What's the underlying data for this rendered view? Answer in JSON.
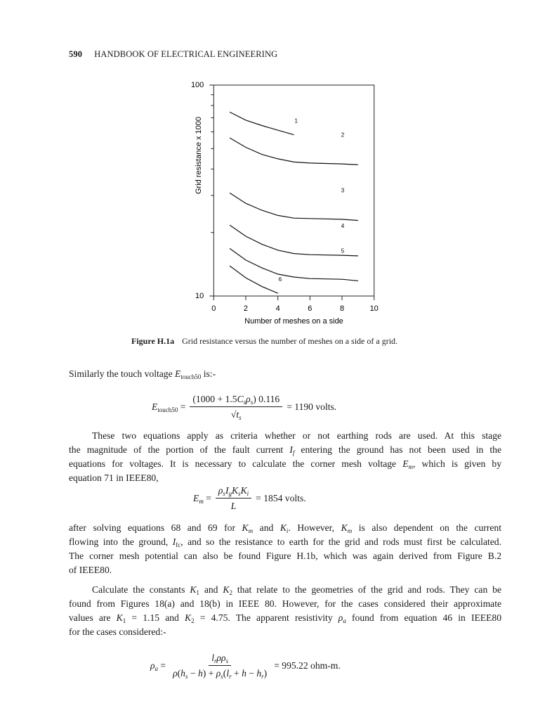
{
  "header": {
    "page_number": "590",
    "running_title": "HANDBOOK OF ELECTRICAL ENGINEERING"
  },
  "chart_data": {
    "type": "line",
    "xlabel": "Number of meshes on a side",
    "ylabel": "Grid resistance x 1000",
    "xlim": [
      0,
      10
    ],
    "ylim": [
      10,
      100
    ],
    "y_scale": "log",
    "x_ticks": [
      "0",
      "2",
      "4",
      "6",
      "8",
      "10"
    ],
    "y_tick_labels": [
      "10",
      "100"
    ],
    "grid": false,
    "series": [
      {
        "name": "1",
        "x": [
          1,
          2,
          3,
          4,
          5
        ],
        "y": [
          74.5,
          68.2,
          64.3,
          61.1,
          58.1
        ]
      },
      {
        "name": "2",
        "x": [
          1,
          2,
          3,
          4,
          5,
          6,
          8,
          9
        ],
        "y": [
          56.2,
          50.7,
          46.9,
          44.7,
          43.2,
          42.7,
          42.3,
          41.9
        ]
      },
      {
        "name": "3",
        "x": [
          1,
          2,
          3,
          4,
          5,
          6,
          8,
          9
        ],
        "y": [
          30.8,
          27.5,
          25.5,
          24.1,
          23.4,
          23.3,
          23.1,
          22.8
        ]
      },
      {
        "name": "4",
        "x": [
          1,
          2,
          3,
          4,
          5,
          6,
          8,
          9
        ],
        "y": [
          21.7,
          19.2,
          17.6,
          16.5,
          15.9,
          15.7,
          15.6,
          15.5
        ]
      },
      {
        "name": "5",
        "x": [
          1,
          2,
          3,
          4,
          5,
          6,
          8,
          9
        ],
        "y": [
          16.8,
          14.8,
          13.6,
          12.7,
          12.3,
          12.1,
          12.0,
          11.8
        ]
      },
      {
        "name": "6",
        "x": [
          1,
          2,
          3,
          4
        ],
        "y": [
          13.9,
          12.2,
          11.1,
          10.3
        ]
      }
    ]
  },
  "caption": {
    "label": "Figure H.1a",
    "text": "Grid resistance versus the number of meshes on a side of a grid."
  },
  "body": {
    "p1": [
      [
        "Similarly the touch voltage ",
        {
          "v": "E",
          "sub": "touch50"
        },
        " is:-"
      ]
    ],
    "p2": [
      [
        "These two equations apply as criteria whether or not earthing rods are used. At this stage"
      ],
      [
        "the magnitude of the portion of the fault current ",
        {
          "v": "I",
          "subi": "f"
        },
        " entering the ground has not been used in the"
      ],
      [
        "equations for voltages. It is necessary to calculate the corner mesh voltage ",
        {
          "v": "E",
          "subi": "m"
        },
        ", which is given by"
      ],
      [
        "equation 71 in IEEE80,"
      ]
    ],
    "p3": [
      [
        "after solving equations 68 and 69 for ",
        {
          "v": "K",
          "subi": "m"
        },
        " and ",
        {
          "v": "K",
          "subi": "i"
        },
        ". However, ",
        {
          "v": "K",
          "subi": "m"
        },
        " is also dependent on the current"
      ],
      [
        "flowing into the ground, ",
        {
          "v": "I",
          "sub": "fc"
        },
        ", and so the resistance to earth for the grid and rods must first be calculated."
      ],
      [
        "The corner mesh potential can also be found Figure H.1b, which was again derived from Figure B.2"
      ],
      [
        "of IEEE80."
      ]
    ],
    "p4": [
      [
        "Calculate the constants ",
        {
          "v": "K",
          "sub": "1"
        },
        " and ",
        {
          "v": "K",
          "sub": "2"
        },
        " that relate to the geometries of the grid and rods. They can be"
      ],
      [
        "found from Figures 18(a) and 18(b) in IEEE 80. However, for the cases considered their approximate"
      ],
      [
        "values are ",
        {
          "v": "K",
          "sub": "1"
        },
        " = 1.15 and ",
        {
          "v": "K",
          "sub": "2"
        },
        " = 4.75. The apparent resistivity ",
        {
          "v": "ρ",
          "subi": "a"
        },
        " found from equation 46 in IEEE80"
      ],
      [
        "for the cases considered:-"
      ]
    ]
  },
  "equations": {
    "touch": {
      "lhs": [
        {
          "v": "E",
          "sub": "touch50"
        },
        " ="
      ],
      "num": [
        "(1000 + 1.5",
        {
          "v": "C",
          "subi": "s"
        },
        {
          "v": "ρ",
          "subi": "s"
        },
        ") 0.116"
      ],
      "den": [
        "√",
        {
          "v": "t",
          "subi": "s"
        }
      ],
      "rhs": [
        "= 1190 volts."
      ]
    },
    "mesh": {
      "lhs": [
        {
          "v": "E",
          "subi": "m"
        },
        " ="
      ],
      "num": [
        {
          "v": "ρ",
          "subi": "s"
        },
        {
          "v": "I",
          "subi": "g"
        },
        {
          "v": "K",
          "subi": "s"
        },
        {
          "v": "K",
          "subi": "i"
        }
      ],
      "den": [
        {
          "v": "L"
        }
      ],
      "rhs": [
        "= 1854 volts."
      ]
    },
    "resistivity": {
      "lhs": [
        {
          "v": "ρ",
          "subi": "a"
        },
        " ="
      ],
      "num": [
        {
          "v": "l",
          "subi": "r"
        },
        {
          "v": "ρ"
        },
        {
          "v": "ρ",
          "subi": "s"
        }
      ],
      "den": [
        {
          "v": "ρ"
        },
        "(",
        {
          "v": "h",
          "subi": "s"
        },
        " − ",
        {
          "v": "h"
        },
        ") + ",
        {
          "v": "ρ",
          "subi": "s"
        },
        "(",
        {
          "v": "l",
          "subi": "r"
        },
        " + ",
        {
          "v": "h"
        },
        " − ",
        {
          "v": "h",
          "subi": "r"
        },
        ")"
      ],
      "rhs": [
        "= 995.22 ohm-m."
      ]
    }
  }
}
